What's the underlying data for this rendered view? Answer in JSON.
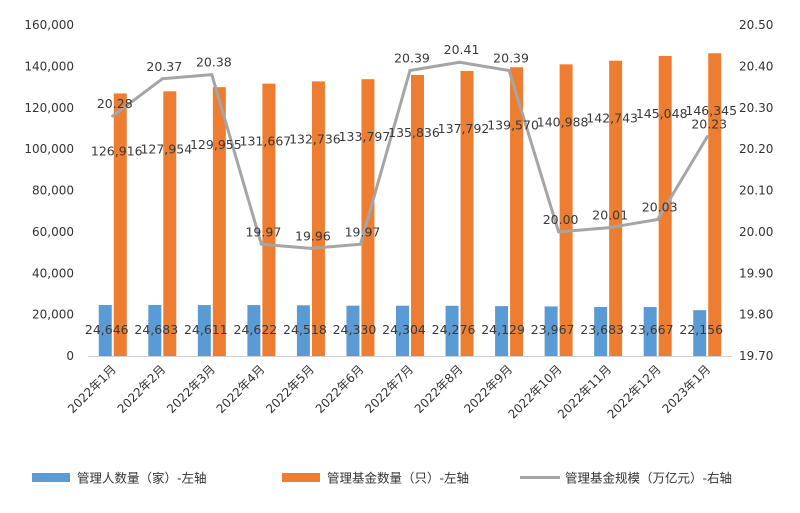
{
  "chart_data": {
    "type": "bar",
    "categories": [
      "2022年1月",
      "2022年2月",
      "2022年3月",
      "2022年4月",
      "2022年5月",
      "2022年6月",
      "2022年7月",
      "2022年8月",
      "2022年9月",
      "2022年10月",
      "2022年11月",
      "2022年12月",
      "2023年1月"
    ],
    "series": [
      {
        "name": "管理人数量（家）-左轴",
        "type": "bar",
        "axis": "left",
        "color": "#5B9BD5",
        "values": [
          24646,
          24683,
          24611,
          24622,
          24518,
          24330,
          24304,
          24276,
          24129,
          23967,
          23683,
          23667,
          22156
        ],
        "labels": [
          "24,646",
          "24,683",
          "24,611",
          "24,622",
          "24,518",
          "24,330",
          "24,304",
          "24,276",
          "24,129",
          "23,967",
          "23,683",
          "23,667",
          "22,156"
        ]
      },
      {
        "name": "管理基金数量（只）-左轴",
        "type": "bar",
        "axis": "left",
        "color": "#ED7D31",
        "values": [
          126916,
          127954,
          129955,
          131667,
          132736,
          133797,
          135836,
          137792,
          139570,
          140988,
          142743,
          145048,
          146345
        ],
        "labels": [
          "126,916",
          "127,954",
          "129,955",
          "131,667",
          "132,736",
          "133,797",
          "135,836",
          "137,792",
          "139,570",
          "140,988",
          "142,743",
          "145,048",
          "146,345"
        ]
      },
      {
        "name": "管理基金规模（万亿元）-右轴",
        "type": "line",
        "axis": "right",
        "color": "#A5A5A5",
        "values": [
          20.28,
          20.37,
          20.38,
          19.97,
          19.96,
          19.97,
          20.39,
          20.41,
          20.39,
          20.0,
          20.01,
          20.03,
          20.23
        ],
        "labels": [
          "20.28",
          "20.37",
          "20.38",
          "19.97",
          "19.96",
          "19.97",
          "20.39",
          "20.41",
          "20.39",
          "20.00",
          "20.01",
          "20.03",
          "20.23"
        ]
      }
    ],
    "left_axis": {
      "ylim": [
        0,
        160000
      ],
      "ticks": [
        0,
        20000,
        40000,
        60000,
        80000,
        100000,
        120000,
        140000,
        160000
      ],
      "tick_labels": [
        "0",
        "20,000",
        "40,000",
        "60,000",
        "80,000",
        "100,000",
        "120,000",
        "140,000",
        "160,000"
      ]
    },
    "right_axis": {
      "ylim": [
        19.7,
        20.5
      ],
      "ticks": [
        19.7,
        19.8,
        19.9,
        20.0,
        20.1,
        20.2,
        20.3,
        20.4,
        20.5
      ],
      "tick_labels": [
        "19.70",
        "19.80",
        "19.90",
        "20.00",
        "20.10",
        "20.20",
        "20.30",
        "20.40",
        "20.50"
      ]
    },
    "grid": false,
    "legend_position": "bottom"
  }
}
